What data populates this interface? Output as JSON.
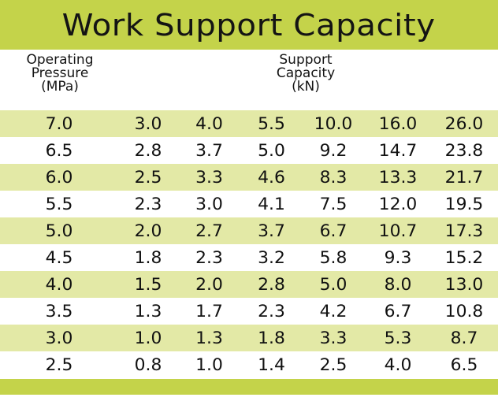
{
  "title": "Work Support Capacity",
  "header": {
    "left": [
      "Operating",
      "Pressure",
      "(MPa)"
    ],
    "right": [
      "Support",
      "Capacity",
      "(kN)"
    ]
  },
  "colors": {
    "accent": "#c4d34a",
    "row_shade": "#e3e9a6"
  },
  "table": {
    "rows": [
      [
        "7.0",
        "3.0",
        "4.0",
        "5.5",
        "10.0",
        "16.0",
        "26.0"
      ],
      [
        "6.5",
        "2.8",
        "3.7",
        "5.0",
        "9.2",
        "14.7",
        "23.8"
      ],
      [
        "6.0",
        "2.5",
        "3.3",
        "4.6",
        "8.3",
        "13.3",
        "21.7"
      ],
      [
        "5.5",
        "2.3",
        "3.0",
        "4.1",
        "7.5",
        "12.0",
        "19.5"
      ],
      [
        "5.0",
        "2.0",
        "2.7",
        "3.7",
        "6.7",
        "10.7",
        "17.3"
      ],
      [
        "4.5",
        "1.8",
        "2.3",
        "3.2",
        "5.8",
        "9.3",
        "15.2"
      ],
      [
        "4.0",
        "1.5",
        "2.0",
        "2.8",
        "5.0",
        "8.0",
        "13.0"
      ],
      [
        "3.5",
        "1.3",
        "1.7",
        "2.3",
        "4.2",
        "6.7",
        "10.8"
      ],
      [
        "3.0",
        "1.0",
        "1.3",
        "1.8",
        "3.3",
        "5.3",
        "8.7"
      ],
      [
        "2.5",
        "0.8",
        "1.0",
        "1.4",
        "2.5",
        "4.0",
        "6.5"
      ]
    ]
  }
}
